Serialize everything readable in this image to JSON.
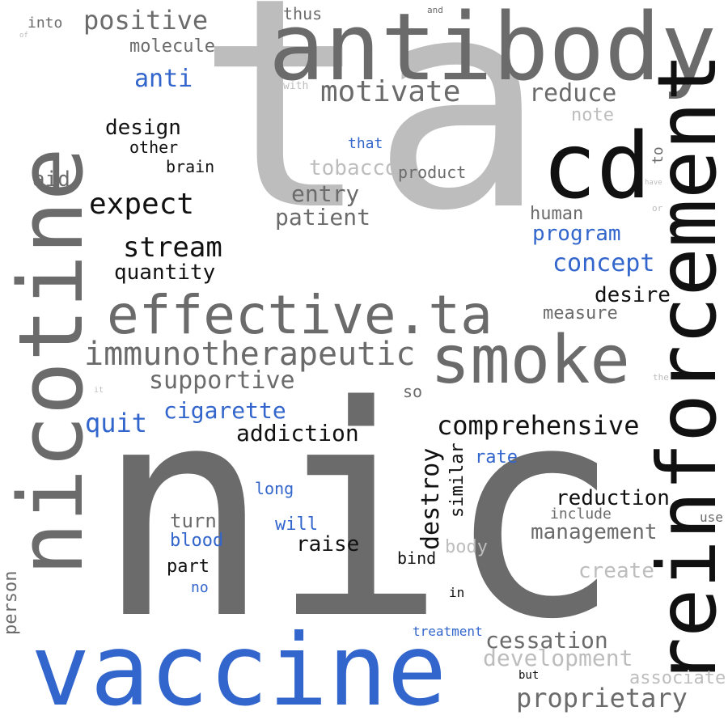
{
  "palette": {
    "dark_gray": "#6b6b6b",
    "light_gray": "#bdbdbd",
    "blue": "#3366cc",
    "black": "#111111"
  },
  "words": {
    "ta": "ta",
    "nic": "nic",
    "antibody": "antibody",
    "vaccine": "vaccine",
    "nicotine": "nicotine",
    "reinforcement": "reinforcement",
    "cd": "cd",
    "effective_ta": "effective.ta",
    "smoke": "smoke",
    "immunotherapeutic": "immunotherapeutic",
    "positive": "positive",
    "motivate": "motivate",
    "anti": "anti",
    "molecule": "molecule",
    "reduce": "reduce",
    "design": "design",
    "other": "other",
    "brain": "brain",
    "aid": "aid",
    "expect": "expect",
    "stream": "stream",
    "quantity": "quantity",
    "entry": "entry",
    "patient": "patient",
    "tobacco": "tobacco",
    "product": "product",
    "human": "human",
    "program": "program",
    "concept": "concept",
    "desire": "desire",
    "measure": "measure",
    "note": "note",
    "that": "that",
    "supportive": "supportive",
    "cigarette": "cigarette",
    "quit": "quit",
    "addiction": "addiction",
    "comprehensive": "comprehensive",
    "destroy": "destroy",
    "similar": "similar",
    "rate": "rate",
    "so": "so",
    "long": "long",
    "turn": "turn",
    "blood": "blood",
    "will": "will",
    "raise": "raise",
    "part": "part",
    "no": "no",
    "bind": "bind",
    "body": "body",
    "reduction": "reduction",
    "include": "include",
    "management": "management",
    "create": "create",
    "use": "use",
    "in": "in",
    "treatment": "treatment",
    "cessation": "cessation",
    "development": "development",
    "associate": "associate",
    "but": "but",
    "proprietary": "proprietary",
    "person": "person",
    "into": "into",
    "of": "of",
    "thus": "thus",
    "and": "and",
    "with": "with",
    "to": "to",
    "have": "have",
    "or": "or",
    "the": "the",
    "it": "it"
  }
}
